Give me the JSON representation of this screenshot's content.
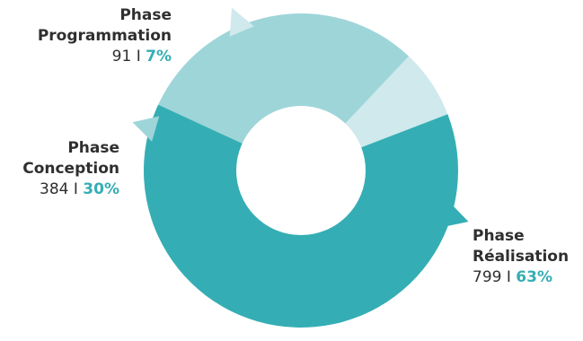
{
  "chart_data": {
    "type": "pie",
    "variant": "donut",
    "start_angle_deg": -21,
    "direction": "counterclockwise",
    "slices": [
      {
        "label_line1": "Phase",
        "label_line2": "Programmation",
        "count": "91",
        "value": 91,
        "percent": "7%",
        "color": "#cfe9ed"
      },
      {
        "label_line1": "Phase",
        "label_line2": "Conception",
        "count": "384",
        "value": 384,
        "percent": "30%",
        "color": "#9ed5d9"
      },
      {
        "label_line1": "Phase",
        "label_line2": "Réalisation",
        "count": "799",
        "value": 799,
        "percent": "63%",
        "color": "#34aeb4"
      }
    ],
    "separator": "I",
    "center_color": "#ffffff",
    "percent_color": "#34aeb4",
    "label_color": "#2f2f2f"
  }
}
